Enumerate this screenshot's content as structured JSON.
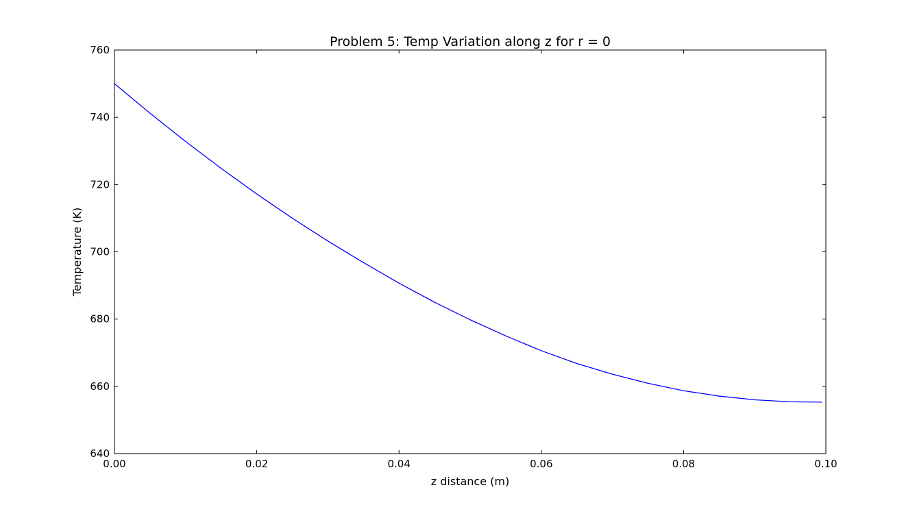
{
  "chart_data": {
    "type": "line",
    "title": "Problem 5: Temp Variation along z for r = 0",
    "xlabel": "z distance (m)",
    "ylabel": "Temperature (K)",
    "xlim": [
      0.0,
      0.1
    ],
    "ylim": [
      640,
      760
    ],
    "xticks": [
      "0.00",
      "0.02",
      "0.04",
      "0.06",
      "0.08",
      "0.10"
    ],
    "yticks": [
      "640",
      "660",
      "680",
      "700",
      "720",
      "740",
      "760"
    ],
    "grid": false,
    "legend": "none",
    "series": [
      {
        "color": "#0000ff",
        "x": [
          0.0,
          0.005,
          0.01,
          0.015,
          0.02,
          0.025,
          0.03,
          0.035,
          0.04,
          0.045,
          0.05,
          0.055,
          0.06,
          0.065,
          0.07,
          0.075,
          0.08,
          0.085,
          0.09,
          0.095,
          0.0995
        ],
        "y": [
          750.0,
          741.2,
          732.8,
          724.8,
          717.2,
          710.0,
          703.2,
          696.8,
          690.7,
          685.0,
          679.8,
          675.0,
          670.6,
          666.8,
          663.6,
          660.9,
          658.7,
          657.1,
          656.0,
          655.4,
          655.3
        ]
      }
    ]
  }
}
